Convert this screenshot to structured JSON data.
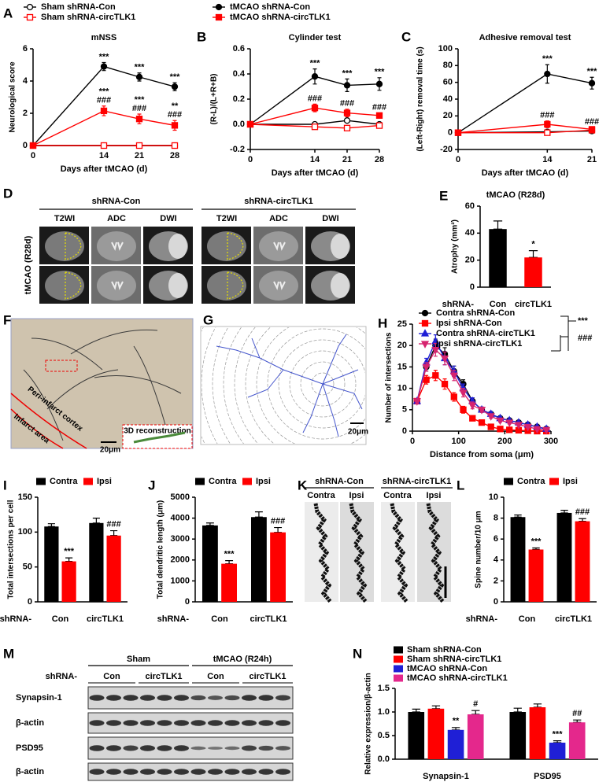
{
  "chart_data": [
    {
      "type": "line",
      "panel": "A",
      "title": "mNSS",
      "xlabel": "Days after tMCAO (d)",
      "ylabel": "Neurological score",
      "x": [
        0,
        14,
        21,
        28
      ],
      "xlim": [
        0,
        28
      ],
      "xticks": [
        0,
        14,
        21,
        28
      ],
      "ylim": [
        0,
        6
      ],
      "yticks": [
        0,
        2,
        4,
        6
      ],
      "legend": "top",
      "series": [
        {
          "name": "Sham shRNA-Con",
          "color": "#000000",
          "marker": "circle-open",
          "values": [
            0,
            0,
            0,
            0
          ]
        },
        {
          "name": "Sham shRNA-circTLK1",
          "color": "#ff0000",
          "marker": "square-open",
          "values": [
            0,
            0,
            0,
            0
          ]
        },
        {
          "name": "tMCAO shRNA-Con",
          "color": "#000000",
          "marker": "circle",
          "values": [
            0,
            4.9,
            4.25,
            3.65
          ],
          "errors": [
            null,
            0.25,
            0.25,
            0.25
          ],
          "sig": [
            null,
            [
              "***"
            ],
            [
              "***"
            ],
            [
              "***"
            ]
          ]
        },
        {
          "name": "tMCAO shRNA-circTLK1",
          "color": "#ff0000",
          "marker": "square",
          "values": [
            0,
            2.15,
            1.65,
            1.25
          ],
          "errors": [
            null,
            0.3,
            0.3,
            0.3
          ],
          "sig": [
            null,
            [
              "***",
              "###"
            ],
            [
              "***",
              "###"
            ],
            [
              "**",
              "###"
            ]
          ]
        }
      ]
    },
    {
      "type": "line",
      "panel": "B",
      "title": "Cylinder test",
      "xlabel": "Days after tMCAO (d)",
      "ylabel": "(R-L)/(L+R+B)",
      "x": [
        0,
        14,
        21,
        28
      ],
      "xlim": [
        0,
        28
      ],
      "xticks": [
        0,
        14,
        21,
        28
      ],
      "ylim": [
        -0.2,
        0.6
      ],
      "yticks": [
        -0.2,
        {
          "value": 0,
          "label": "0.0"
        },
        0.2,
        0.4,
        0.6
      ],
      "series": [
        {
          "color": "#000000",
          "marker": "circle-open",
          "values": [
            0,
            0,
            0.03,
            0
          ]
        },
        {
          "color": "#ff0000",
          "marker": "square-open",
          "values": [
            0,
            -0.02,
            -0.03,
            -0.01
          ]
        },
        {
          "color": "#000000",
          "marker": "circle",
          "values": [
            0,
            0.38,
            0.31,
            0.32
          ],
          "errors": [
            null,
            0.06,
            0.05,
            0.05
          ],
          "sig": [
            null,
            [
              "***"
            ],
            [
              "***"
            ],
            [
              "***"
            ]
          ]
        },
        {
          "color": "#ff0000",
          "marker": "square",
          "values": [
            0,
            0.13,
            0.09,
            0.07
          ],
          "errors": [
            null,
            0.03,
            0.03,
            0.02
          ],
          "sig": [
            null,
            [
              "###"
            ],
            [
              "###"
            ],
            [
              "###"
            ]
          ]
        }
      ]
    },
    {
      "type": "line",
      "panel": "C",
      "title": "Adhesive removal test",
      "xlabel": "Days after tMCAO (d)",
      "ylabel": "(Left-Right) removal time (s)",
      "x": [
        0,
        14,
        21
      ],
      "xlim": [
        0,
        21
      ],
      "xticks": [
        0,
        14,
        21
      ],
      "ylim": [
        -20,
        100
      ],
      "yticks": [
        -20,
        0,
        20,
        40,
        60,
        80,
        100
      ],
      "series": [
        {
          "color": "#000000",
          "marker": "circle-open",
          "values": [
            0,
            1,
            2
          ]
        },
        {
          "color": "#ff0000",
          "marker": "square-open",
          "values": [
            0,
            0,
            3
          ]
        },
        {
          "color": "#000000",
          "marker": "circle",
          "values": [
            0,
            70,
            59
          ],
          "errors": [
            null,
            11,
            7
          ],
          "sig": [
            null,
            [
              "***"
            ],
            [
              "***"
            ]
          ]
        },
        {
          "color": "#ff0000",
          "marker": "square",
          "values": [
            0,
            10,
            4
          ],
          "errors": [
            null,
            4,
            2
          ],
          "sig": [
            null,
            [
              "###"
            ],
            [
              "###"
            ]
          ]
        }
      ]
    },
    {
      "type": "bar",
      "panel": "E",
      "title": "tMCAO (R28d)",
      "ylabel": "Atrophy (mm³)",
      "category_prefix": "shRNA-",
      "categories": [
        "Con",
        "circTLK1"
      ],
      "values": [
        43,
        22
      ],
      "errors": [
        6,
        5
      ],
      "colors": [
        "#000000",
        "#ff0000"
      ],
      "sig": [
        null,
        "*"
      ],
      "ylim": [
        0,
        60
      ],
      "yticks": [
        0,
        20,
        40,
        60
      ]
    },
    {
      "type": "line",
      "panel": "H",
      "xlabel": "Distance from soma (μm)",
      "ylabel": "Number of intersections",
      "x": [
        10,
        30,
        50,
        70,
        90,
        110,
        130,
        150,
        170,
        190,
        210,
        230,
        250,
        270,
        290
      ],
      "xlim": [
        0,
        300
      ],
      "xticks": [
        0,
        100,
        200,
        300
      ],
      "ylim": [
        0,
        25
      ],
      "yticks": [
        0,
        5,
        10,
        15,
        20,
        25
      ],
      "legend": "top",
      "annotations": [
        "***",
        "###"
      ],
      "series": [
        {
          "name": "Contra shRNA-Con",
          "color": "#000000",
          "marker": "circle",
          "values": [
            7,
            15,
            20,
            18,
            14,
            11,
            7,
            5,
            4,
            3,
            2.5,
            2,
            1.5,
            1,
            0.5
          ],
          "errors": [
            0.5,
            1,
            1.5,
            1.5,
            1.2,
            1,
            0.8,
            0.6,
            0.5,
            0.4,
            0.3,
            0.3,
            0.2,
            0.2,
            0.2
          ]
        },
        {
          "name": "Ipsi shRNA-Con",
          "color": "#ff0000",
          "marker": "square",
          "values": [
            7,
            12,
            13,
            11,
            8,
            5,
            3,
            2,
            1,
            0.5,
            0.3,
            0.2,
            0.1,
            0,
            0
          ],
          "errors": [
            0.5,
            1,
            1.2,
            1.2,
            1,
            0.8,
            0.6,
            0.5,
            0.4,
            0.3,
            0.2,
            0.2,
            0.1,
            0.1,
            0.1
          ]
        },
        {
          "name": "Contra shRNA-circTLK1",
          "color": "#1f1fd6",
          "marker": "triangle",
          "values": [
            7,
            16,
            21,
            17,
            14,
            10,
            7,
            5,
            4,
            3,
            2.5,
            2,
            1.5,
            1,
            0.5
          ],
          "errors": [
            0.5,
            1,
            1.5,
            1.5,
            1.2,
            1,
            0.8,
            0.6,
            0.5,
            0.4,
            0.3,
            0.3,
            0.2,
            0.2,
            0.2
          ]
        },
        {
          "name": "Ipsi shRNA-circTLK1",
          "color": "#d6246e",
          "marker": "triangle-down",
          "values": [
            7,
            15,
            19,
            17,
            13,
            9,
            6,
            5,
            3.5,
            2.5,
            2,
            1.5,
            1,
            0.5,
            0.3
          ],
          "errors": [
            0.5,
            1,
            1.5,
            1.5,
            1.2,
            1,
            0.8,
            0.6,
            0.5,
            0.4,
            0.3,
            0.3,
            0.2,
            0.2,
            0.2
          ]
        }
      ]
    },
    {
      "type": "bar",
      "panel": "I",
      "ylabel": "Total intersections per cell",
      "category_prefix": "shRNA-",
      "categories": [
        "Con",
        "circTLK1"
      ],
      "legend": "top",
      "ylim": [
        0,
        150
      ],
      "yticks": [
        0,
        50,
        100,
        150
      ],
      "series": [
        {
          "name": "Contra",
          "color": "#000000",
          "values": [
            108,
            113
          ],
          "errors": [
            4,
            7
          ]
        },
        {
          "name": "Ipsi",
          "color": "#ff0000",
          "values": [
            58,
            95
          ],
          "errors": [
            5,
            7
          ],
          "sig": [
            "***",
            "###"
          ]
        }
      ]
    },
    {
      "type": "bar",
      "panel": "J",
      "ylabel": "Total dendritic length (μm)",
      "category_prefix": "shRNA-",
      "categories": [
        "Con",
        "circTLK1"
      ],
      "legend": "top",
      "ylim": [
        0,
        5000
      ],
      "yticks": [
        0,
        1000,
        2000,
        3000,
        4000,
        5000
      ],
      "series": [
        {
          "name": "Contra",
          "color": "#000000",
          "values": [
            3650,
            4050
          ],
          "errors": [
            120,
            250
          ]
        },
        {
          "name": "Ipsi",
          "color": "#ff0000",
          "values": [
            1820,
            3320
          ],
          "errors": [
            150,
            230
          ],
          "sig": [
            "***",
            "###"
          ]
        }
      ]
    },
    {
      "type": "bar",
      "panel": "L",
      "ylabel": "Spine number/10 μm",
      "category_prefix": "shRNA-",
      "categories": [
        "Con",
        "circTLK1"
      ],
      "legend": "top",
      "ylim": [
        0,
        10
      ],
      "yticks": [
        0,
        2,
        4,
        6,
        8,
        10
      ],
      "series": [
        {
          "name": "Contra",
          "color": "#000000",
          "values": [
            8.1,
            8.5
          ],
          "errors": [
            0.2,
            0.25
          ]
        },
        {
          "name": "Ipsi",
          "color": "#ff0000",
          "values": [
            5.0,
            7.7
          ],
          "errors": [
            0.15,
            0.25
          ],
          "sig": [
            "***",
            "###"
          ]
        }
      ]
    },
    {
      "type": "bar",
      "panel": "N",
      "ylabel": "Relative expression/β-actin",
      "categories": [
        "Synapsin-1",
        "PSD95"
      ],
      "legend": "top",
      "ylim": [
        0,
        1.5
      ],
      "yticks": [
        {
          "value": 0,
          "label": "0.0"
        },
        0.5,
        {
          "value": 1,
          "label": "1.0"
        },
        1.5
      ],
      "series": [
        {
          "name": "Sham shRNA-Con",
          "color": "#000000",
          "values": [
            1.0,
            1.0
          ],
          "errors": [
            0.06,
            0.08
          ]
        },
        {
          "name": "Sham shRNA-circTLK1",
          "color": "#ff0000",
          "values": [
            1.07,
            1.1
          ],
          "errors": [
            0.06,
            0.07
          ]
        },
        {
          "name": "tMCAO shRNA-Con",
          "color": "#1f1fd6",
          "values": [
            0.62,
            0.35
          ],
          "errors": [
            0.05,
            0.04
          ],
          "sig": [
            "**",
            "***"
          ]
        },
        {
          "name": "tMCAO shRNA-circTLK1",
          "color": "#e4288c",
          "values": [
            0.95,
            0.78
          ],
          "errors": [
            0.08,
            0.05
          ],
          "sig": [
            "#",
            "##"
          ]
        }
      ]
    }
  ],
  "figure": {
    "D": {
      "panel": "D",
      "groups": [
        "shRNA-Con",
        "shRNA-circTLK1"
      ],
      "columns": [
        "T2WI",
        "ADC",
        "DWI",
        "T2WI",
        "ADC",
        "DWI"
      ],
      "row_label": "tMCAO (R28d)"
    },
    "F": {
      "panel": "F",
      "labels": [
        "Peri-infarct cortex",
        "Infarct area"
      ],
      "scale": "20μm",
      "inset": "3D reconstruction"
    },
    "G": {
      "panel": "G",
      "scale": "20μm"
    },
    "K": {
      "panel": "K",
      "groups": [
        "shRNA-Con",
        "shRNA-circTLK1"
      ],
      "columns": [
        "Contra",
        "Ipsi",
        "Contra",
        "Ipsi"
      ]
    },
    "M": {
      "panel": "M",
      "groups": [
        "Sham",
        "tMCAO (R24h)"
      ],
      "prefix": "shRNA-",
      "subgroups": [
        "Con",
        "circTLK1",
        "Con",
        "circTLK1"
      ],
      "rows": [
        "Synapsin-1",
        "β-actin",
        "PSD95",
        "β-actin"
      ]
    }
  }
}
